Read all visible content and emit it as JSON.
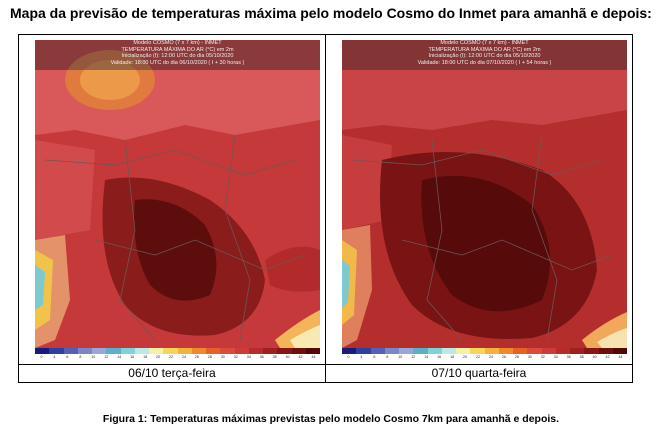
{
  "title": "Mapa da previsão de temperaturas máxima pelo modelo Cosmo do Inmet para amanhã e depois:",
  "maps": [
    {
      "header": {
        "line1": "Modelo COSMO (7 x 7 km) - INMET",
        "line2": "TEMPERATURA MÁXIMA DO AR (°C) em 2m",
        "line3": "Inicialização (I): 12:00 UTC do dia 05/10/2020",
        "line4": "Validade: 18:00 UTC do dia 06/10/2020 ( I + 30 horas )"
      },
      "caption": "06/10 terça-feira"
    },
    {
      "header": {
        "line1": "Modelo COSMO (7 x 7 km) - INMET",
        "line2": "TEMPERATURA MÁXIMA DO AR (°C) em 2m",
        "line3": "Inicialização (I): 12:00 UTC do dia 05/10/2020",
        "line4": "Validade: 18:00 UTC do dia 07/10/2020 ( I + 54 horas )"
      },
      "caption": "07/10 quarta-feira"
    }
  ],
  "colorbar": {
    "colors": [
      "#1a1a7a",
      "#2e3f9e",
      "#5560b5",
      "#7d86c4",
      "#9aa6d6",
      "#5bb0c9",
      "#7fd3d6",
      "#bde8e4",
      "#f4f0a8",
      "#f6d55a",
      "#f3b23a",
      "#ef8a2c",
      "#e7602a",
      "#de4a3a",
      "#cf3b3b",
      "#b92b2b",
      "#a01f1f",
      "#861616",
      "#6b0f0f",
      "#500808"
    ],
    "ticks": [
      "0",
      "4",
      "6",
      "8",
      "10",
      "12",
      "14",
      "16",
      "18",
      "20",
      "22",
      "24",
      "26",
      "28",
      "30",
      "32",
      "34",
      "36",
      "38",
      "40",
      "42",
      "44"
    ]
  },
  "figure_caption": "Figura 1: Temperaturas máximas previstas pelo modelo Cosmo 7km para amanhã e depois."
}
